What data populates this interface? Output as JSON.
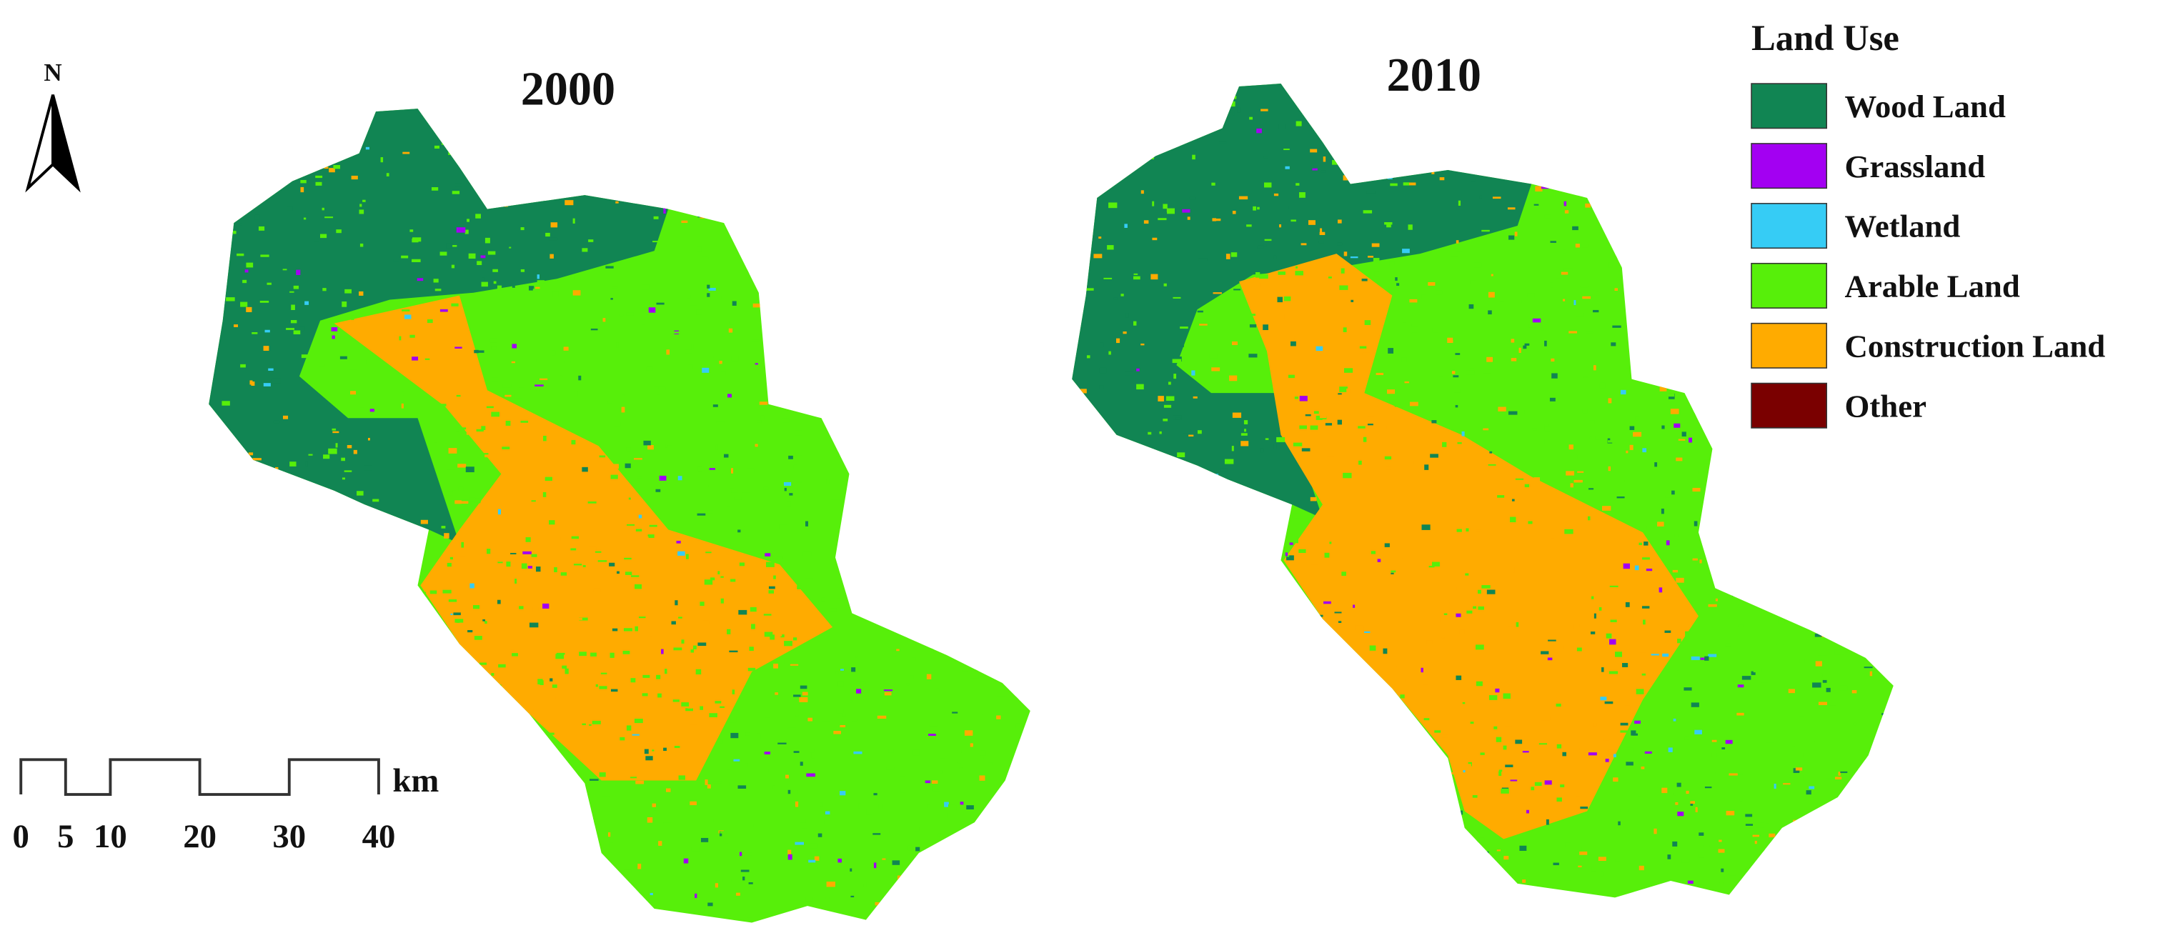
{
  "maps": [
    {
      "title": "2000"
    },
    {
      "title": "2010"
    }
  ],
  "legend": {
    "title": "Land Use",
    "items": [
      {
        "label": "Wood Land",
        "color": "#118553"
      },
      {
        "label": "Grassland",
        "color": "#a300f2"
      },
      {
        "label": "Wetland",
        "color": "#36ccf5"
      },
      {
        "label": "Arable Land",
        "color": "#57ef0a"
      },
      {
        "label": "Construction Land",
        "color": "#ffab00"
      },
      {
        "label": "Other",
        "color": "#7a0000"
      }
    ]
  },
  "scale_bar": {
    "ticks": [
      0,
      5,
      10,
      20,
      30,
      40
    ],
    "unit": "km"
  },
  "north_arrow": {
    "label": "N"
  }
}
